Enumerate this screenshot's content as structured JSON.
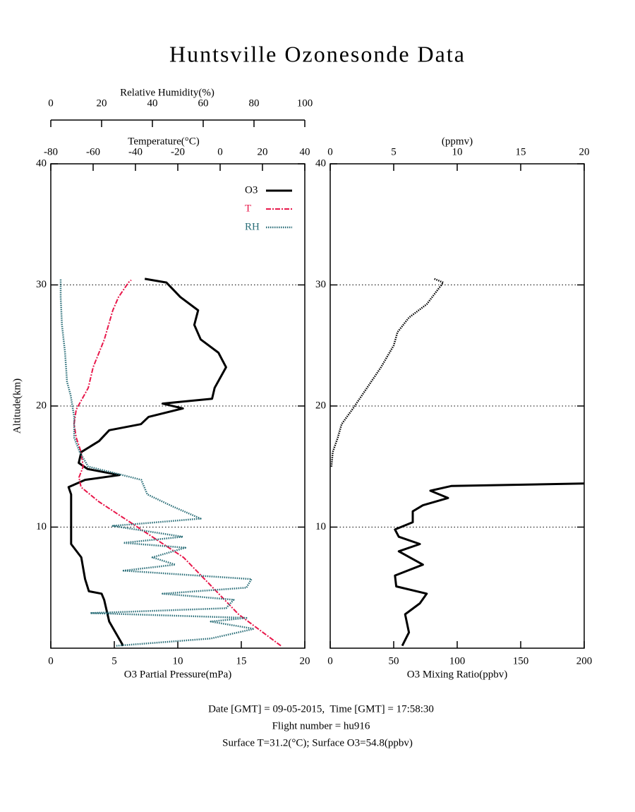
{
  "title": "Huntsville Ozonesonde Data",
  "footer": [
    "Date [GMT] = 09-05-2015,  Time [GMT] = 17:58:30",
    "Flight number = hu916",
    "Surface T=31.2(°C); Surface O3=54.8(ppbv)"
  ],
  "chart_data": [
    {
      "type": "line",
      "ylabel": "Altitude(km)",
      "ylim": [
        0,
        40
      ],
      "yticks": [
        10,
        20,
        30,
        40
      ],
      "grid": true,
      "legend": "upper right",
      "xlabel": "O3 Partial Pressure(mPa)",
      "xlim": [
        0,
        20
      ],
      "xticks": [
        0,
        5,
        10,
        15,
        20
      ],
      "x2label": "Temperature(°C)",
      "x2lim": [
        -80,
        40
      ],
      "x2ticks": [
        -80,
        -60,
        -40,
        -20,
        0,
        20,
        40
      ],
      "x3label": "Relative Humidity(%)",
      "x3lim": [
        0,
        100
      ],
      "x3ticks": [
        0,
        20,
        40,
        60,
        80,
        100
      ],
      "series": [
        {
          "name": "O3",
          "color": "#000000",
          "axis": "x",
          "line_style": "solid",
          "y": [
            0.2,
            2.2,
            4.0,
            4.5,
            4.7,
            5.7,
            7.5,
            8.6,
            9.8,
            12.7,
            13.3,
            13.9,
            14.3,
            14.8,
            15.3,
            16.2,
            17.1,
            18.0,
            18.5,
            19.1,
            19.8,
            20.2,
            20.6,
            21.5,
            23.2,
            24.4,
            25.5,
            26.7,
            27.9,
            29.0,
            30.2,
            30.5
          ],
          "values": [
            5.7,
            4.6,
            4.2,
            4.0,
            3.0,
            2.7,
            2.4,
            1.6,
            1.6,
            1.6,
            1.4,
            2.7,
            5.4,
            2.9,
            2.2,
            2.4,
            3.8,
            4.6,
            7.1,
            7.7,
            10.4,
            8.8,
            12.7,
            12.9,
            13.8,
            13.2,
            11.8,
            11.3,
            11.6,
            10.2,
            9.1,
            7.4
          ]
        },
        {
          "name": "T",
          "color": "#e8174a",
          "axis": "x2",
          "line_style": "dashdot",
          "y": [
            0.2,
            1.2,
            2.8,
            5.1,
            7.5,
            9.8,
            12.1,
            13.3,
            14.1,
            15.0,
            16.2,
            17.4,
            18.5,
            19.7,
            21.5,
            23.2,
            25.5,
            27.9,
            29.0,
            30.2,
            30.4
          ],
          "values": [
            28.7,
            21,
            8.7,
            -4,
            -17.3,
            -37.3,
            -57.3,
            -65.7,
            -66.7,
            -64.7,
            -65.7,
            -68,
            -69,
            -68,
            -62.3,
            -60,
            -54.7,
            -50.7,
            -48,
            -43.3,
            -42
          ]
        },
        {
          "name": "RH",
          "color": "#2a6e78",
          "axis": "x3",
          "line_style": "dotted",
          "y": [
            0.2,
            0.8,
            1.6,
            2.2,
            2.5,
            2.9,
            3.3,
            4.0,
            4.5,
            5.0,
            5.7,
            6.4,
            6.9,
            7.5,
            8.3,
            8.7,
            9.2,
            10.1,
            10.7,
            11.7,
            12.7,
            13.9,
            14.5,
            15.0,
            16.2,
            17.4,
            19.1,
            20.9,
            22.0,
            24.4,
            26.7,
            29.0,
            30.5
          ],
          "values": [
            25.8,
            63,
            80,
            63,
            77,
            15.6,
            69,
            72,
            44,
            77,
            79,
            28.6,
            49,
            40,
            53,
            28.6,
            52,
            24.4,
            59,
            48,
            38,
            35.6,
            24.4,
            14.7,
            11.4,
            9.2,
            9.2,
            7.8,
            6.4,
            5.6,
            4.4,
            3.9,
            3.9
          ]
        }
      ]
    },
    {
      "type": "line",
      "ylim": [
        0,
        40
      ],
      "yticks": [
        10,
        20,
        30,
        40
      ],
      "grid": true,
      "xlabel": "O3 Mixing Ratio(ppbv)",
      "xlim": [
        0,
        200
      ],
      "xticks": [
        0,
        50,
        100,
        150,
        200
      ],
      "x2label": "(ppmv)",
      "x2lim": [
        0,
        20
      ],
      "x2ticks": [
        0,
        5,
        10,
        15,
        20
      ],
      "series": [
        {
          "color": "#000000",
          "axis": "x",
          "line_style": "solid",
          "y": [
            0.2,
            1.3,
            2.8,
            3.7,
            4.5,
            5.1,
            6.0,
            6.9,
            8.0,
            8.6,
            9.2,
            9.8,
            10.4,
            11.3,
            11.8,
            12.4,
            13.0,
            13.4,
            13.6
          ],
          "values": [
            56.7,
            62,
            59,
            70.6,
            76,
            52,
            51,
            73,
            54,
            70.6,
            54,
            51,
            65,
            65,
            73,
            92.8,
            78.9,
            95.6,
            200
          ]
        },
        {
          "color": "#000000",
          "axis": "x2",
          "line_style": "dotted",
          "y": [
            15.0,
            16.2,
            17.4,
            18.5,
            19.8,
            21.5,
            23.2,
            25.0,
            26.1,
            27.3,
            28.4,
            30.2,
            30.5
          ],
          "values": [
            0.1,
            0.2,
            0.6,
            0.9,
            1.8,
            2.9,
            4.0,
            5.0,
            5.3,
            6.2,
            7.6,
            8.9,
            8.2
          ]
        }
      ]
    }
  ]
}
